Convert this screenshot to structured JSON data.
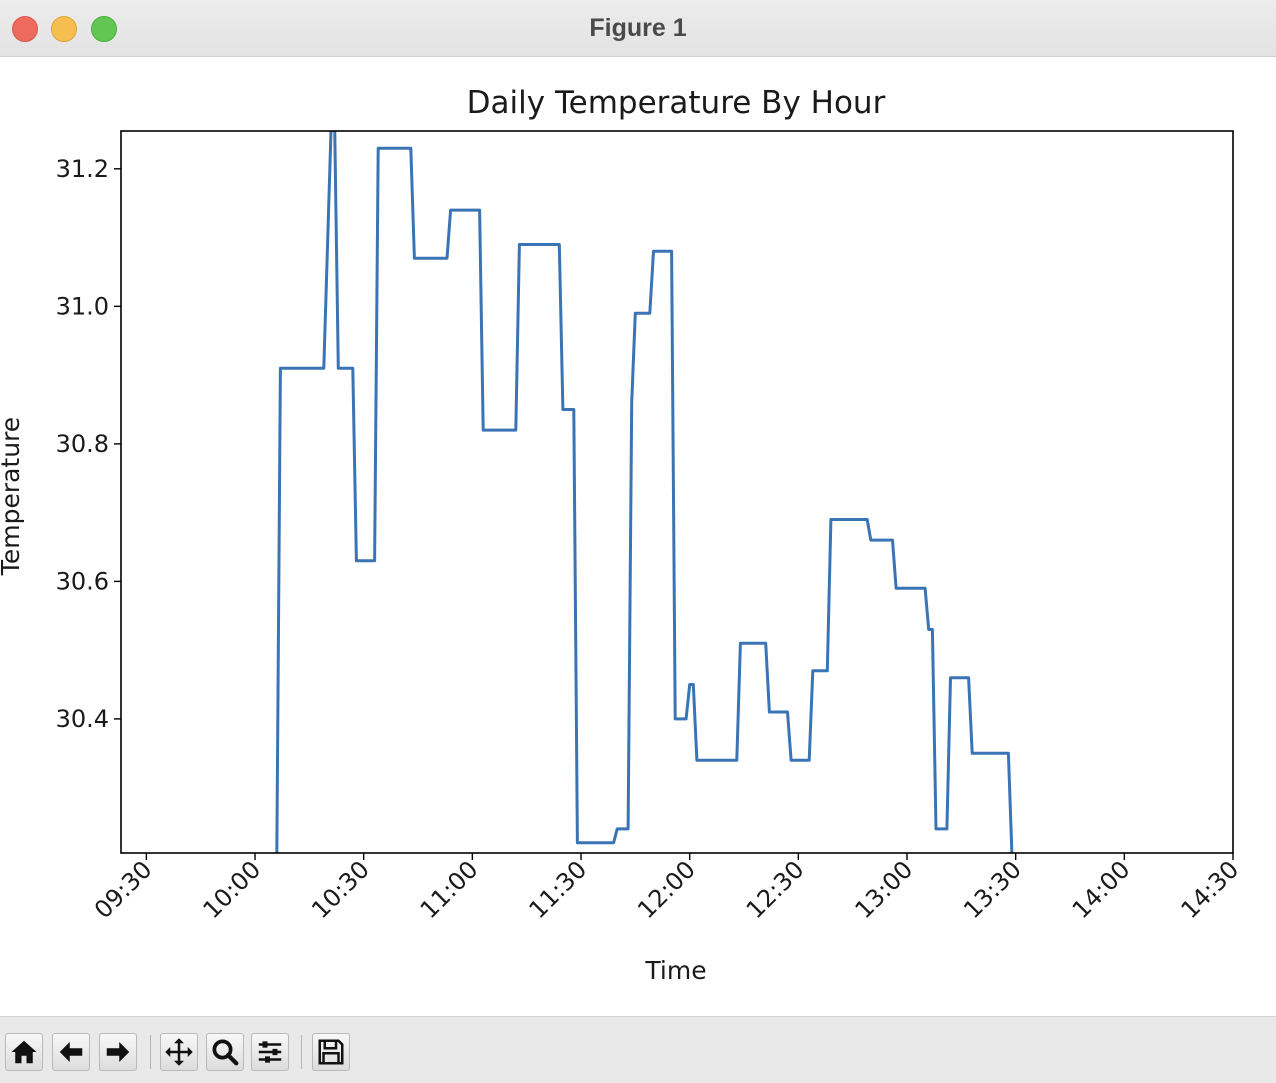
{
  "window": {
    "title": "Figure 1"
  },
  "toolbar": {
    "buttons": [
      {
        "name": "home-button",
        "icon": "home-icon"
      },
      {
        "name": "back-button",
        "icon": "arrow-left-icon"
      },
      {
        "name": "forward-button",
        "icon": "arrow-right-icon"
      },
      {
        "name": "pan-button",
        "icon": "move-icon"
      },
      {
        "name": "zoom-button",
        "icon": "magnifier-icon"
      },
      {
        "name": "configure-subplots-button",
        "icon": "sliders-icon"
      },
      {
        "name": "save-button",
        "icon": "floppy-disk-icon"
      }
    ]
  },
  "chart_data": {
    "type": "line",
    "title": "Daily Temperature By Hour",
    "xlabel": "Time",
    "ylabel": "Temperature",
    "x_ticks": [
      "09:30",
      "10:00",
      "10:30",
      "11:00",
      "11:30",
      "12:00",
      "12:30",
      "13:00",
      "13:30",
      "14:00",
      "14:30"
    ],
    "y_ticks": [
      "30.4",
      "30.6",
      "30.8",
      "31.0",
      "31.2"
    ],
    "xlim": [
      "09:23",
      "14:30"
    ],
    "ylim": [
      30.205,
      31.255
    ],
    "grid": false,
    "line_color": "#3a74b4",
    "series": [
      {
        "name": "",
        "x": [
          "10:06",
          "10:07",
          "10:19",
          "10:21",
          "10:22",
          "10:23",
          "10:27",
          "10:28",
          "10:33",
          "10:34",
          "10:43",
          "10:44",
          "10:53",
          "10:54",
          "11:02",
          "11:03",
          "11:12",
          "11:13",
          "11:24",
          "11:25",
          "11:28",
          "11:29",
          "11:39",
          "11:40",
          "11:43",
          "11:44",
          "11:45",
          "11:46",
          "11:49",
          "11:50",
          "11:55",
          "11:56",
          "11:59",
          "12:00",
          "12:01",
          "12:02",
          "12:13",
          "12:14",
          "12:21",
          "12:22",
          "12:27",
          "12:28",
          "12:33",
          "12:34",
          "12:38",
          "12:39",
          "12:49",
          "12:50",
          "12:56",
          "12:57",
          "13:05",
          "13:06",
          "13:07",
          "13:08",
          "13:11",
          "13:12",
          "13:17",
          "13:18",
          "13:28",
          "13:29"
        ],
        "y": [
          30.2,
          30.91,
          30.91,
          31.26,
          31.26,
          30.91,
          30.91,
          30.63,
          30.63,
          31.23,
          31.23,
          31.07,
          31.07,
          31.14,
          31.14,
          30.82,
          30.82,
          31.09,
          31.09,
          30.85,
          30.85,
          30.22,
          30.22,
          30.24,
          30.24,
          30.86,
          30.99,
          30.99,
          30.99,
          31.08,
          31.08,
          30.4,
          30.4,
          30.45,
          30.45,
          30.34,
          30.34,
          30.51,
          30.51,
          30.41,
          30.41,
          30.34,
          30.34,
          30.47,
          30.47,
          30.69,
          30.69,
          30.66,
          30.66,
          30.59,
          30.59,
          30.53,
          30.53,
          30.24,
          30.24,
          30.46,
          30.46,
          30.35,
          30.35,
          30.2
        ]
      }
    ]
  }
}
